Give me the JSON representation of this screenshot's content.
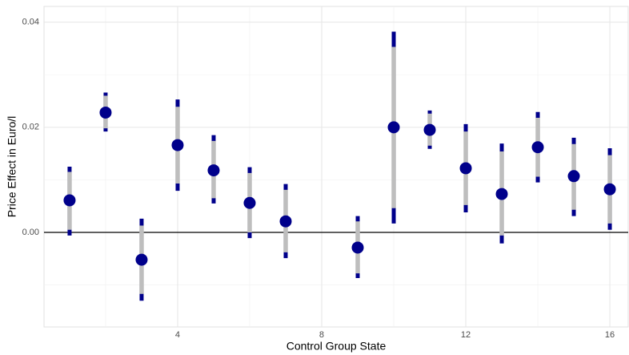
{
  "chart_data": {
    "type": "pointrange",
    "x_label": "Control Group State",
    "y_label": "Price Effect in Euro/l",
    "x": [
      1,
      2,
      3,
      4,
      5,
      6,
      7,
      9,
      10,
      11,
      12,
      13,
      14,
      15,
      16
    ],
    "estimate": [
      0.0061,
      0.0228,
      -0.0052,
      0.0166,
      0.0118,
      0.0056,
      0.0021,
      -0.0029,
      0.02,
      0.0195,
      0.0122,
      0.0073,
      0.0162,
      0.0107,
      0.0082
    ],
    "lower95": [
      -0.0006,
      0.0192,
      -0.013,
      0.0079,
      0.0055,
      -0.0011,
      -0.0049,
      -0.0087,
      0.0017,
      0.0159,
      0.0038,
      -0.0021,
      0.0095,
      0.0031,
      0.0005
    ],
    "upper95": [
      0.0125,
      0.0266,
      0.0026,
      0.0253,
      0.0185,
      0.0124,
      0.0092,
      0.0031,
      0.0382,
      0.0232,
      0.0206,
      0.0169,
      0.0229,
      0.018,
      0.016
    ],
    "lower90": [
      0.0005,
      0.0198,
      -0.0117,
      0.0093,
      0.0065,
      0.0,
      -0.0038,
      -0.0078,
      0.0046,
      0.0165,
      0.0052,
      -0.0006,
      0.0106,
      0.0043,
      0.0017
    ],
    "upper90": [
      0.0115,
      0.026,
      0.0013,
      0.0239,
      0.0174,
      0.0113,
      0.0081,
      0.0021,
      0.0353,
      0.0226,
      0.0192,
      0.0154,
      0.0218,
      0.0168,
      0.0147
    ],
    "point_color": "#00008b",
    "ci95_color": "#00008b",
    "ci90_color": "#bebebe",
    "hline": 0,
    "xlim": [
      0.29,
      16.51
    ],
    "ylim": [
      -0.018,
      0.043
    ],
    "xticks": [
      4,
      8,
      12,
      16
    ],
    "xminorticks": [
      2,
      6,
      10,
      14
    ],
    "yticks": [
      {
        "value": 0,
        "label": "0.00"
      },
      {
        "value": 0.02,
        "label": "0.02"
      },
      {
        "value": 0.04,
        "label": "0.04"
      }
    ],
    "yminorticks": [
      -0.01,
      0.01,
      0.03
    ],
    "grid": true
  }
}
